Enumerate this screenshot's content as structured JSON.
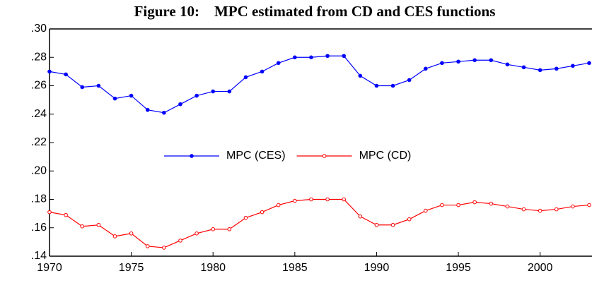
{
  "chart_data": {
    "type": "line",
    "title": "Figure 10:    MPC estimated from CD and CES functions",
    "x": [
      1970,
      1971,
      1972,
      1973,
      1974,
      1975,
      1976,
      1977,
      1978,
      1979,
      1980,
      1981,
      1982,
      1983,
      1984,
      1985,
      1986,
      1987,
      1988,
      1989,
      1990,
      1991,
      1992,
      1993,
      1994,
      1995,
      1996,
      1997,
      1998,
      1999,
      2000,
      2001,
      2002,
      2003
    ],
    "series": [
      {
        "name": "MPC (CES)",
        "color": "#0000ff",
        "marker": "filled",
        "values": [
          0.27,
          0.268,
          0.259,
          0.26,
          0.251,
          0.253,
          0.243,
          0.241,
          0.247,
          0.253,
          0.256,
          0.256,
          0.266,
          0.27,
          0.276,
          0.28,
          0.28,
          0.281,
          0.281,
          0.267,
          0.26,
          0.26,
          0.264,
          0.272,
          0.276,
          0.277,
          0.278,
          0.278,
          0.275,
          0.273,
          0.271,
          0.272,
          0.274,
          0.276
        ]
      },
      {
        "name": "MPC (CD)",
        "color": "#ff0000",
        "marker": "open",
        "values": [
          0.171,
          0.169,
          0.161,
          0.162,
          0.154,
          0.156,
          0.147,
          0.146,
          0.151,
          0.156,
          0.159,
          0.159,
          0.167,
          0.171,
          0.176,
          0.179,
          0.18,
          0.18,
          0.18,
          0.168,
          0.162,
          0.162,
          0.166,
          0.172,
          0.176,
          0.176,
          0.178,
          0.177,
          0.175,
          0.173,
          0.172,
          0.173,
          0.175,
          0.176
        ]
      }
    ],
    "xlim": [
      1970,
      2003
    ],
    "xticks": [
      1970,
      1975,
      1980,
      1985,
      1990,
      1995,
      2000
    ],
    "ylim": [
      0.14,
      0.3
    ],
    "yticks": [
      {
        "value": 0.14,
        "label": ".14"
      },
      {
        "value": 0.16,
        "label": ".16"
      },
      {
        "value": 0.18,
        "label": ".18"
      },
      {
        "value": 0.2,
        "label": ".20"
      },
      {
        "value": 0.22,
        "label": ".22"
      },
      {
        "value": 0.24,
        "label": ".24"
      },
      {
        "value": 0.26,
        "label": ".26"
      },
      {
        "value": 0.28,
        "label": ".28"
      },
      {
        "value": 0.3,
        "label": ".30"
      }
    ],
    "grid": false,
    "legend": "center"
  }
}
